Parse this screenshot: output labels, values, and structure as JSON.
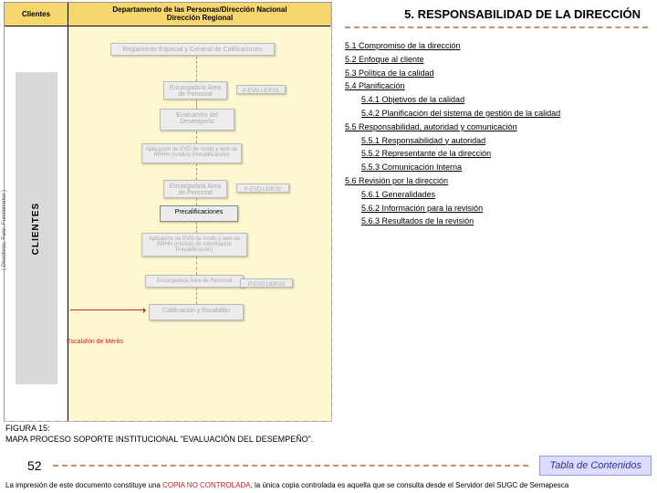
{
  "diagram": {
    "header_left": "Clientes",
    "header_right_l1": "Departamento de las Personas/Dirección Nacional",
    "header_right_l2": "Dirección Regional",
    "clientes_label": "CLIENTES",
    "clientes_sub": "( Directivos, Func. Funcionarios )",
    "reg_box": "Reglamento Especial y General de Calificaciones",
    "enc1": "Encargado/a Área de Personal",
    "tag1": "P-EVD.UDP.01",
    "eval": "Evaluación del Desempeño",
    "mini1": "Aplicación de EVD de modo y web de RRHH (módulo Precalificación)",
    "enc2": "Encargado/a Área de Personal",
    "tag2": "P-EVD.UDP.02",
    "precal": "Precalificaciones",
    "mini2": "Aplicación de EVD de modo y web de RRHH (módulo de Información Precalificación)",
    "mini3": "Encargado/a Área de Personal",
    "tag3": "P-EVD.UDP.03",
    "calif": "Calificación y Escalafón",
    "escal": "Escalafón de Mérito"
  },
  "right": {
    "title": "5. RESPONSABILIDAD DE LA DIRECCIÓN",
    "items": [
      {
        "text": "5.1 Compromiso de la dirección",
        "indent": 0
      },
      {
        "text": "5.2 Enfoque al cliente",
        "indent": 0
      },
      {
        "text": "5.3 Política de la calidad",
        "indent": 0
      },
      {
        "text": "5.4 Planificación",
        "indent": 0
      },
      {
        "text": "5.4.1 Objetivos de la calidad",
        "indent": 1
      },
      {
        "text": "5.4.2 Planificación del sistema de gestión de la calidad",
        "indent": 1
      },
      {
        "text": "5.5 Responsabilidad, autoridad y comunicación",
        "indent": 0
      },
      {
        "text": "5.5.1 Responsabilidad y autoridad",
        "indent": 1
      },
      {
        "text": "5.5.2 Representante de la dirección",
        "indent": 1
      },
      {
        "text": "5.5.3 Comunicación Interna",
        "indent": 1
      },
      {
        "text": "5.6 Revisión por la dirección",
        "indent": 0
      },
      {
        "text": "5.6.1 Generalidades",
        "indent": 1
      },
      {
        "text": "5.6.2 Información para la revisión",
        "indent": 1
      },
      {
        "text": "5.6.3 Resultados de la revisión",
        "indent": 1
      }
    ]
  },
  "caption_l1": "FIGURA 15:",
  "caption_l2": "MAPA PROCESO SOPORTE INSTITUCIONAL \"EVALUACIÓN DEL DESEMPEÑO\".",
  "page_number": "52",
  "toc_button": "Tabla de Contenidos",
  "disclaimer_pre": "La impresión de este documento constituye una ",
  "disclaimer_red": "COPIA NO CONTROLADA",
  "disclaimer_post": ", la única copia controlada es aquella que se consulta desde el Servidor del SUGC de Sernapesca"
}
